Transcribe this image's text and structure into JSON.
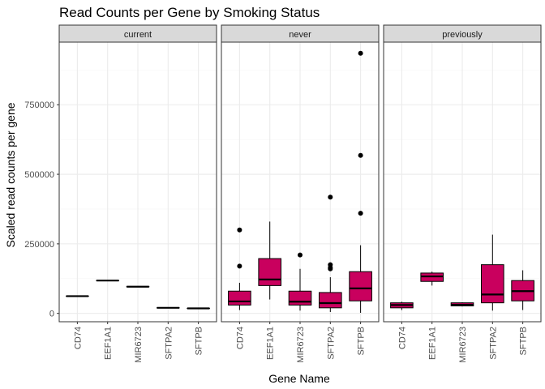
{
  "chart_data": {
    "type": "boxplot",
    "title": "Read Counts per Gene by Smoking Status",
    "xlabel": "Gene Name",
    "ylabel": "Scaled read counts per gene",
    "ylim": [
      -30000,
      975000
    ],
    "y_ticks": [
      0,
      250000,
      500000,
      750000
    ],
    "y_tick_labels": [
      "0",
      "250000",
      "500000",
      "750000"
    ],
    "categories": [
      "CD74",
      "EEF1A1",
      "MIR6723",
      "SFTPA2",
      "SFTPB"
    ],
    "fill_color": "#C9005E",
    "panel_bg": "#ffffff",
    "grid_major_color": "#ebebeb",
    "grid_minor_color": "#f5f5f5",
    "strip_bg": "#d9d9d9",
    "panels": [
      {
        "label": "current",
        "boxes": [
          {
            "gene": "CD74",
            "min": 62000,
            "q1": 62000,
            "median": 62000,
            "q3": 62000,
            "max": 62000,
            "outliers": []
          },
          {
            "gene": "EEF1A1",
            "min": 118000,
            "q1": 118000,
            "median": 118000,
            "q3": 118000,
            "max": 118000,
            "outliers": []
          },
          {
            "gene": "MIR6723",
            "min": 96000,
            "q1": 96000,
            "median": 96000,
            "q3": 96000,
            "max": 96000,
            "outliers": []
          },
          {
            "gene": "SFTPA2",
            "min": 20000,
            "q1": 20000,
            "median": 20000,
            "q3": 20000,
            "max": 20000,
            "outliers": []
          },
          {
            "gene": "SFTPB",
            "min": 18000,
            "q1": 18000,
            "median": 18000,
            "q3": 18000,
            "max": 18000,
            "outliers": []
          }
        ]
      },
      {
        "label": "never",
        "boxes": [
          {
            "gene": "CD74",
            "min": 12000,
            "q1": 30000,
            "median": 43000,
            "q3": 80000,
            "max": 110000,
            "outliers": [
              170000,
              300000
            ]
          },
          {
            "gene": "EEF1A1",
            "min": 50000,
            "q1": 100000,
            "median": 122000,
            "q3": 197000,
            "max": 330000,
            "outliers": []
          },
          {
            "gene": "MIR6723",
            "min": 10000,
            "q1": 30000,
            "median": 42000,
            "q3": 80000,
            "max": 160000,
            "outliers": [
              210000
            ]
          },
          {
            "gene": "SFTPA2",
            "min": 5000,
            "q1": 20000,
            "median": 37000,
            "q3": 75000,
            "max": 130000,
            "outliers": [
              160000,
              165000,
              175000,
              418000
            ]
          },
          {
            "gene": "SFTPB",
            "min": 2000,
            "q1": 45000,
            "median": 90000,
            "q3": 150000,
            "max": 245000,
            "outliers": [
              360000,
              568000,
              935000
            ]
          }
        ]
      },
      {
        "label": "previously",
        "boxes": [
          {
            "gene": "CD74",
            "min": 12000,
            "q1": 20000,
            "median": 30000,
            "q3": 38000,
            "max": 42000,
            "outliers": []
          },
          {
            "gene": "EEF1A1",
            "min": 100000,
            "q1": 115000,
            "median": 133000,
            "q3": 145000,
            "max": 150000,
            "outliers": []
          },
          {
            "gene": "MIR6723",
            "min": 25000,
            "q1": 27000,
            "median": 31000,
            "q3": 38000,
            "max": 40000,
            "outliers": []
          },
          {
            "gene": "SFTPA2",
            "min": 10000,
            "q1": 38000,
            "median": 68000,
            "q3": 175000,
            "max": 283000,
            "outliers": []
          },
          {
            "gene": "SFTPB",
            "min": 12000,
            "q1": 45000,
            "median": 80000,
            "q3": 118000,
            "max": 155000,
            "outliers": []
          }
        ]
      }
    ]
  }
}
